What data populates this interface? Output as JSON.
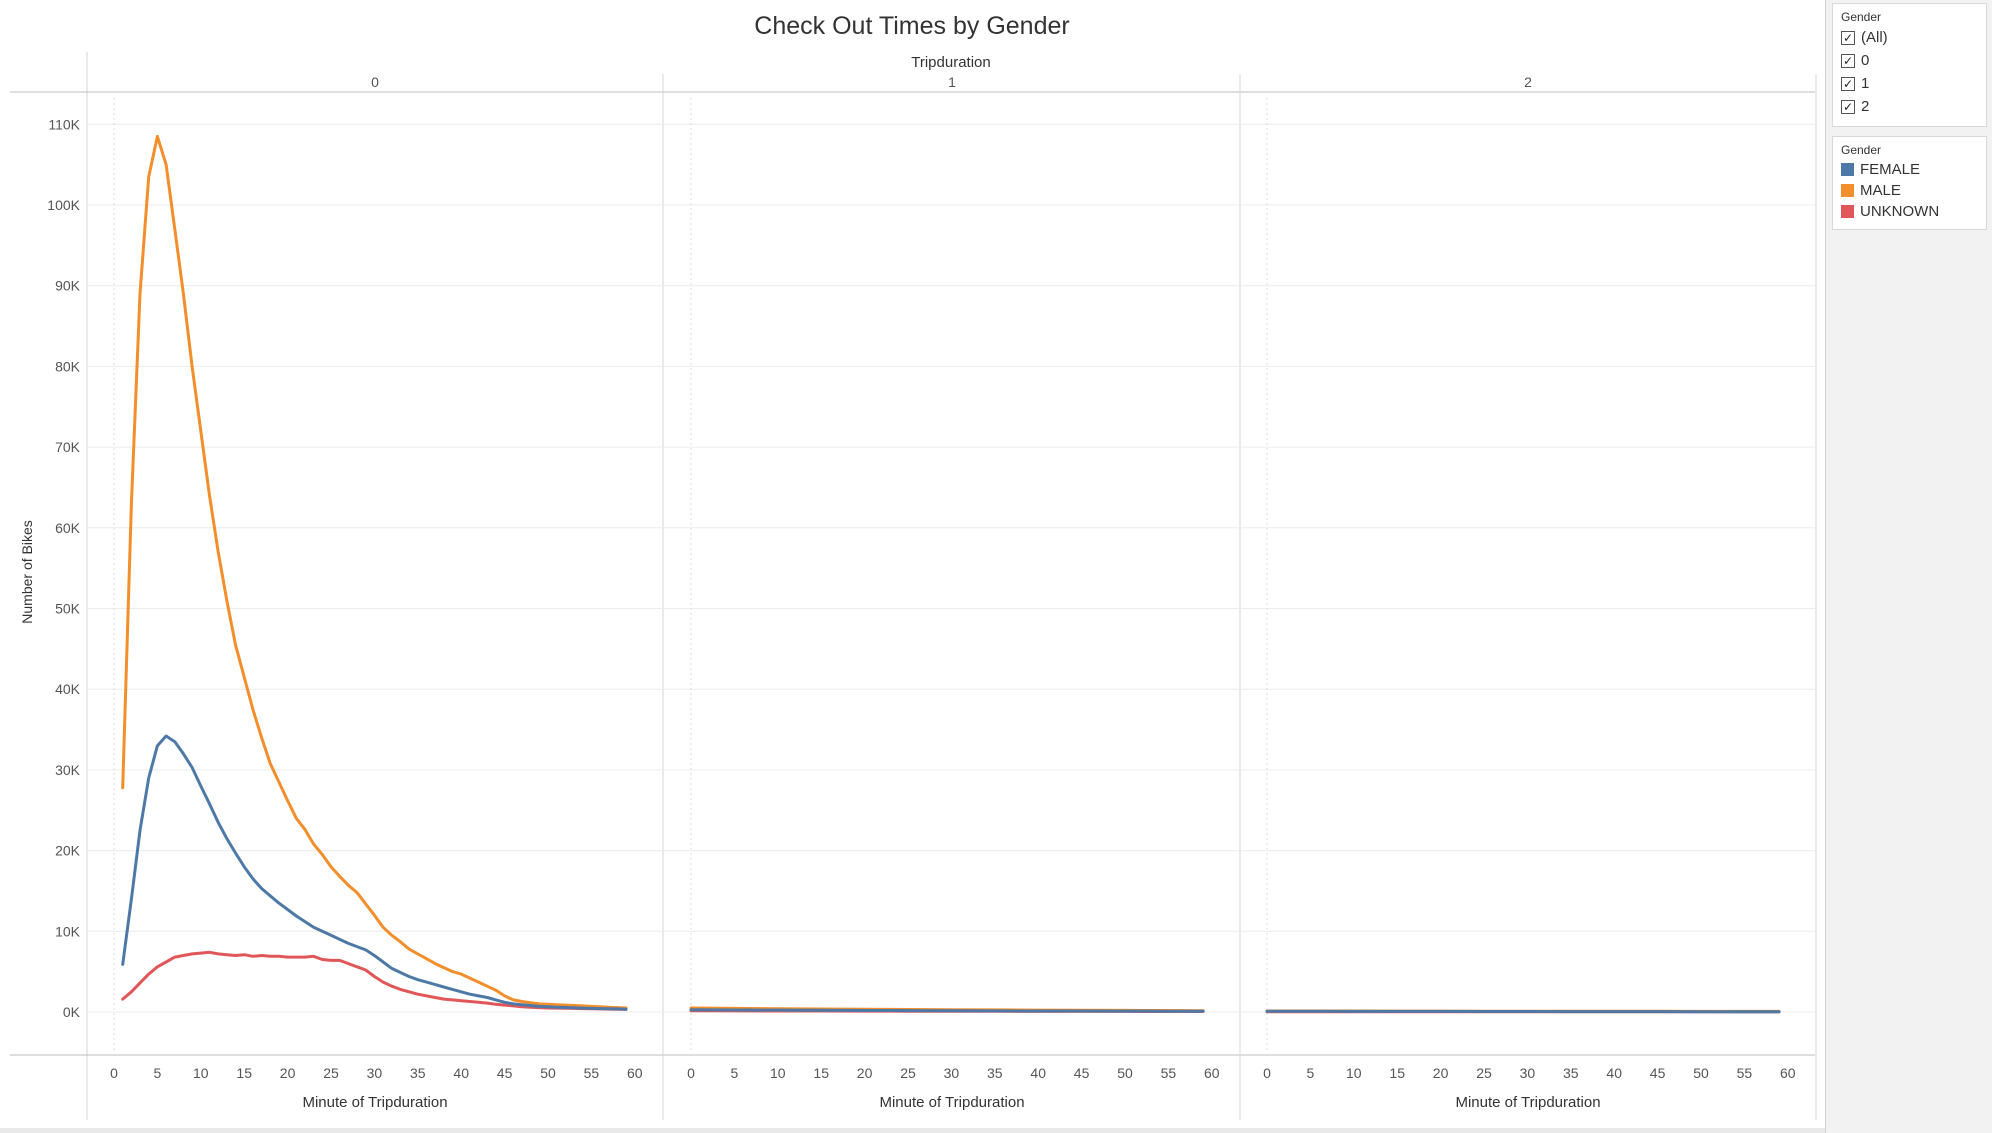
{
  "chart_data": {
    "type": "line",
    "title": "Check Out Times by Gender",
    "column_header": "Tripduration",
    "panels": [
      "0",
      "1",
      "2"
    ],
    "xlabel": "Minute of Tripduration",
    "ylabel": "Number of Bikes",
    "xlim": [
      0,
      60
    ],
    "ylim": [
      -5000,
      116000
    ],
    "x_ticks": [
      "0",
      "5",
      "10",
      "15",
      "20",
      "25",
      "30",
      "35",
      "40",
      "45",
      "50",
      "55",
      "60"
    ],
    "y_ticks": [
      {
        "value": 0,
        "label": "0K"
      },
      {
        "value": 10000,
        "label": "10K"
      },
      {
        "value": 20000,
        "label": "20K"
      },
      {
        "value": 30000,
        "label": "30K"
      },
      {
        "value": 40000,
        "label": "40K"
      },
      {
        "value": 50000,
        "label": "50K"
      },
      {
        "value": 60000,
        "label": "60K"
      },
      {
        "value": 70000,
        "label": "70K"
      },
      {
        "value": 80000,
        "label": "80K"
      },
      {
        "value": 90000,
        "label": "90K"
      },
      {
        "value": 100000,
        "label": "100K"
      },
      {
        "value": 110000,
        "label": "110K"
      }
    ],
    "grid": true,
    "legend_position": "right",
    "series": [
      {
        "name": "FEMALE",
        "color": "#4e79a7",
        "panel_data": [
          [
            [
              1,
              5900
            ],
            [
              2,
              14000
            ],
            [
              3,
              22500
            ],
            [
              4,
              29000
            ],
            [
              5,
              33000
            ],
            [
              6,
              34200
            ],
            [
              7,
              33500
            ],
            [
              8,
              32000
            ],
            [
              9,
              30300
            ],
            [
              10,
              28000
            ],
            [
              11,
              25800
            ],
            [
              12,
              23500
            ],
            [
              13,
              21500
            ],
            [
              14,
              19700
            ],
            [
              15,
              18000
            ],
            [
              16,
              16500
            ],
            [
              17,
              15300
            ],
            [
              18,
              14400
            ],
            [
              19,
              13500
            ],
            [
              20,
              12700
            ],
            [
              21,
              11900
            ],
            [
              22,
              11200
            ],
            [
              23,
              10500
            ],
            [
              24,
              10000
            ],
            [
              25,
              9500
            ],
            [
              26,
              9000
            ],
            [
              27,
              8500
            ],
            [
              28,
              8100
            ],
            [
              29,
              7700
            ],
            [
              30,
              7000
            ],
            [
              31,
              6200
            ],
            [
              32,
              5400
            ],
            [
              33,
              4900
            ],
            [
              34,
              4400
            ],
            [
              35,
              4000
            ],
            [
              36,
              3700
            ],
            [
              37,
              3400
            ],
            [
              38,
              3100
            ],
            [
              39,
              2800
            ],
            [
              40,
              2500
            ],
            [
              41,
              2200
            ],
            [
              42,
              2000
            ],
            [
              43,
              1800
            ],
            [
              44,
              1500
            ],
            [
              45,
              1200
            ],
            [
              46,
              1000
            ],
            [
              47,
              900
            ],
            [
              48,
              800
            ],
            [
              49,
              700
            ],
            [
              50,
              650
            ],
            [
              51,
              600
            ],
            [
              52,
              560
            ],
            [
              53,
              520
            ],
            [
              54,
              480
            ],
            [
              55,
              450
            ],
            [
              56,
              420
            ],
            [
              57,
              400
            ],
            [
              58,
              380
            ],
            [
              59,
              350
            ]
          ],
          [
            [
              0,
              280
            ],
            [
              5,
              250
            ],
            [
              10,
              230
            ],
            [
              15,
              210
            ],
            [
              20,
              190
            ],
            [
              25,
              170
            ],
            [
              30,
              150
            ],
            [
              35,
              140
            ],
            [
              40,
              130
            ],
            [
              45,
              120
            ],
            [
              50,
              110
            ],
            [
              55,
              100
            ],
            [
              59,
              90
            ]
          ],
          [
            [
              0,
              90
            ],
            [
              5,
              85
            ],
            [
              10,
              80
            ],
            [
              15,
              75
            ],
            [
              20,
              70
            ],
            [
              25,
              65
            ],
            [
              30,
              60
            ],
            [
              35,
              55
            ],
            [
              40,
              50
            ],
            [
              45,
              45
            ],
            [
              50,
              40
            ],
            [
              55,
              35
            ],
            [
              59,
              30
            ]
          ]
        ]
      },
      {
        "name": "MALE",
        "color": "#f28e2b",
        "panel_data": [
          [
            [
              1,
              27800
            ],
            [
              2,
              63000
            ],
            [
              3,
              89000
            ],
            [
              4,
              103500
            ],
            [
              5,
              108500
            ],
            [
              6,
              105000
            ],
            [
              7,
              97000
            ],
            [
              8,
              89000
            ],
            [
              9,
              80000
            ],
            [
              10,
              72000
            ],
            [
              11,
              64000
            ],
            [
              12,
              57000
            ],
            [
              13,
              51000
            ],
            [
              14,
              45500
            ],
            [
              15,
              41500
            ],
            [
              16,
              37500
            ],
            [
              17,
              34000
            ],
            [
              18,
              30800
            ],
            [
              19,
              28500
            ],
            [
              20,
              26200
            ],
            [
              21,
              24000
            ],
            [
              22,
              22600
            ],
            [
              23,
              20800
            ],
            [
              24,
              19500
            ],
            [
              25,
              18000
            ],
            [
              26,
              16800
            ],
            [
              27,
              15700
            ],
            [
              28,
              14800
            ],
            [
              29,
              13400
            ],
            [
              30,
              12000
            ],
            [
              31,
              10500
            ],
            [
              32,
              9500
            ],
            [
              33,
              8700
            ],
            [
              34,
              7800
            ],
            [
              35,
              7200
            ],
            [
              36,
              6600
            ],
            [
              37,
              6000
            ],
            [
              38,
              5500
            ],
            [
              39,
              5000
            ],
            [
              40,
              4700
            ],
            [
              41,
              4200
            ],
            [
              42,
              3700
            ],
            [
              43,
              3200
            ],
            [
              44,
              2700
            ],
            [
              45,
              2000
            ],
            [
              46,
              1500
            ],
            [
              47,
              1300
            ],
            [
              48,
              1150
            ],
            [
              49,
              1000
            ],
            [
              50,
              950
            ],
            [
              51,
              900
            ],
            [
              52,
              850
            ],
            [
              53,
              800
            ],
            [
              54,
              750
            ],
            [
              55,
              700
            ],
            [
              56,
              650
            ],
            [
              57,
              600
            ],
            [
              58,
              550
            ],
            [
              59,
              500
            ]
          ],
          [
            [
              0,
              500
            ],
            [
              5,
              450
            ],
            [
              10,
              400
            ],
            [
              15,
              370
            ],
            [
              20,
              340
            ],
            [
              25,
              310
            ],
            [
              30,
              280
            ],
            [
              35,
              260
            ],
            [
              40,
              240
            ],
            [
              45,
              220
            ],
            [
              50,
              200
            ],
            [
              55,
              180
            ],
            [
              59,
              160
            ]
          ],
          [
            [
              0,
              130
            ],
            [
              5,
              125
            ],
            [
              10,
              120
            ],
            [
              15,
              115
            ],
            [
              20,
              110
            ],
            [
              25,
              105
            ],
            [
              30,
              100
            ],
            [
              35,
              95
            ],
            [
              40,
              90
            ],
            [
              45,
              85
            ],
            [
              50,
              80
            ],
            [
              55,
              75
            ],
            [
              59,
              70
            ]
          ]
        ]
      },
      {
        "name": "UNKNOWN",
        "color": "#e15759",
        "panel_data": [
          [
            [
              1,
              1600
            ],
            [
              2,
              2500
            ],
            [
              3,
              3600
            ],
            [
              4,
              4700
            ],
            [
              5,
              5600
            ],
            [
              6,
              6200
            ],
            [
              7,
              6800
            ],
            [
              8,
              7000
            ],
            [
              9,
              7200
            ],
            [
              10,
              7300
            ],
            [
              11,
              7400
            ],
            [
              12,
              7200
            ],
            [
              13,
              7100
            ],
            [
              14,
              7000
            ],
            [
              15,
              7100
            ],
            [
              16,
              6900
            ],
            [
              17,
              7000
            ],
            [
              18,
              6900
            ],
            [
              19,
              6900
            ],
            [
              20,
              6800
            ],
            [
              21,
              6800
            ],
            [
              22,
              6800
            ],
            [
              23,
              6900
            ],
            [
              24,
              6500
            ],
            [
              25,
              6400
            ],
            [
              26,
              6400
            ],
            [
              27,
              6000
            ],
            [
              28,
              5600
            ],
            [
              29,
              5200
            ],
            [
              30,
              4400
            ],
            [
              31,
              3700
            ],
            [
              32,
              3200
            ],
            [
              33,
              2800
            ],
            [
              34,
              2500
            ],
            [
              35,
              2200
            ],
            [
              36,
              2000
            ],
            [
              37,
              1800
            ],
            [
              38,
              1600
            ],
            [
              39,
              1500
            ],
            [
              40,
              1400
            ],
            [
              41,
              1300
            ],
            [
              42,
              1200
            ],
            [
              43,
              1100
            ],
            [
              44,
              950
            ],
            [
              45,
              850
            ],
            [
              46,
              750
            ],
            [
              47,
              650
            ],
            [
              48,
              600
            ],
            [
              49,
              550
            ],
            [
              50,
              500
            ],
            [
              51,
              480
            ],
            [
              52,
              460
            ],
            [
              53,
              440
            ],
            [
              54,
              420
            ],
            [
              55,
              400
            ],
            [
              56,
              380
            ],
            [
              57,
              360
            ],
            [
              58,
              340
            ],
            [
              59,
              320
            ]
          ],
          [
            [
              0,
              150
            ],
            [
              5,
              140
            ],
            [
              10,
              130
            ],
            [
              15,
              120
            ],
            [
              20,
              110
            ],
            [
              25,
              100
            ],
            [
              30,
              90
            ],
            [
              35,
              85
            ],
            [
              40,
              80
            ],
            [
              45,
              75
            ],
            [
              50,
              70
            ],
            [
              55,
              65
            ],
            [
              59,
              60
            ]
          ],
          [
            [
              0,
              40
            ],
            [
              5,
              38
            ],
            [
              10,
              36
            ],
            [
              15,
              34
            ],
            [
              20,
              32
            ],
            [
              25,
              30
            ],
            [
              30,
              28
            ],
            [
              35,
              26
            ],
            [
              40,
              24
            ],
            [
              45,
              22
            ],
            [
              50,
              20
            ],
            [
              55,
              18
            ],
            [
              59,
              16
            ]
          ]
        ]
      }
    ]
  },
  "sidebar": {
    "filter_title": "Gender",
    "filter_items": [
      "(All)",
      "0",
      "1",
      "2"
    ],
    "legend_title": "Gender",
    "legend_items": [
      {
        "label": "FEMALE",
        "color": "#4e79a7"
      },
      {
        "label": "MALE",
        "color": "#f28e2b"
      },
      {
        "label": "UNKNOWN",
        "color": "#e15759"
      }
    ]
  }
}
